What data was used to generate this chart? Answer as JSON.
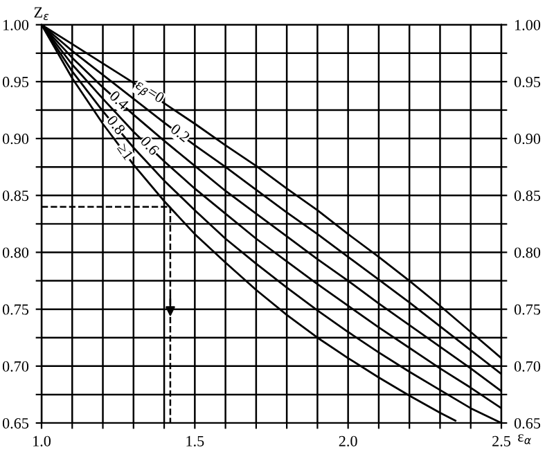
{
  "chart_data": {
    "type": "line",
    "xlabel": "ε$_{α}$",
    "ylabel": "Z$_{ε}$",
    "grid": true,
    "marker": "none",
    "line_style": "solid",
    "xlim": [
      1.0,
      2.5
    ],
    "ylim": [
      0.65,
      1.0
    ],
    "y2lim": [
      0.65,
      1.0
    ],
    "xticks": [
      {
        "value": 1.0,
        "label": "1.0"
      },
      {
        "value": 1.1,
        "label": null
      },
      {
        "value": 1.2,
        "label": null
      },
      {
        "value": 1.3,
        "label": null
      },
      {
        "value": 1.4,
        "label": null
      },
      1.5,
      {
        "value": 1.6,
        "label": null
      },
      {
        "value": 1.7,
        "label": null
      },
      {
        "value": 1.8,
        "label": null
      },
      {
        "value": 1.9,
        "label": null
      },
      {
        "value": 2.0,
        "label": "2.0"
      },
      {
        "value": 2.1,
        "label": null
      },
      {
        "value": 2.2,
        "label": null
      },
      {
        "value": 2.3,
        "label": null
      },
      {
        "value": 2.4,
        "label": null
      },
      2.5
    ],
    "yticks": [
      0.65,
      {
        "value": 0.675,
        "label": null
      },
      {
        "value": 0.7,
        "label": "0.70"
      },
      {
        "value": 0.725,
        "label": null
      },
      0.75,
      {
        "value": 0.775,
        "label": null
      },
      {
        "value": 0.8,
        "label": "0.80"
      },
      {
        "value": 0.825,
        "label": null
      },
      0.85,
      {
        "value": 0.875,
        "label": null
      },
      {
        "value": 0.9,
        "label": "0.90"
      },
      {
        "value": 0.925,
        "label": null
      },
      0.95,
      {
        "value": 0.975,
        "label": null
      },
      {
        "value": 1.0,
        "label": "1.00"
      }
    ],
    "y2ticks": [
      0.65,
      {
        "value": 0.675,
        "label": null
      },
      {
        "value": 0.7,
        "label": "0.70"
      },
      {
        "value": 0.725,
        "label": null
      },
      0.75,
      {
        "value": 0.775,
        "label": null
      },
      {
        "value": 0.8,
        "label": "0.80"
      },
      {
        "value": 0.825,
        "label": null
      },
      0.85,
      {
        "value": 0.875,
        "label": null
      },
      {
        "value": 0.9,
        "label": "0.90"
      },
      {
        "value": 0.925,
        "label": null
      },
      0.95,
      {
        "value": 0.975,
        "label": null
      },
      {
        "value": 1.0,
        "label": "1.00"
      }
    ],
    "x": [
      1.0,
      1.1,
      1.2,
      1.3,
      1.4,
      1.5,
      1.6,
      1.7,
      1.8,
      1.9,
      2.0,
      2.1,
      2.2,
      2.3,
      2.4,
      2.5
    ],
    "series": [
      {
        "name": "ε$_{β}$=0",
        "color": "#000000",
        "values": [
          1.0,
          0.983,
          0.966,
          0.949,
          0.931,
          0.913,
          0.894,
          0.876,
          0.856,
          0.837,
          0.816,
          0.796,
          0.775,
          0.753,
          0.73,
          0.707
        ]
      },
      {
        "name": "0.2",
        "color": "#000000",
        "values": [
          1.0,
          0.977,
          0.956,
          0.935,
          0.914,
          0.894,
          0.875,
          0.855,
          0.835,
          0.816,
          0.796,
          0.776,
          0.756,
          0.735,
          0.714,
          0.693
        ]
      },
      {
        "name": "0.4",
        "color": "#000000",
        "values": [
          1.0,
          0.971,
          0.945,
          0.921,
          0.898,
          0.876,
          0.854,
          0.834,
          0.814,
          0.794,
          0.775,
          0.755,
          0.736,
          0.717,
          0.698,
          0.678
        ]
      },
      {
        "name": "0.6",
        "color": "#000000",
        "values": [
          1.0,
          0.965,
          0.935,
          0.906,
          0.88,
          0.856,
          0.834,
          0.812,
          0.792,
          0.772,
          0.753,
          0.734,
          0.716,
          0.698,
          0.681,
          0.663
        ]
      },
      {
        "name": "0.8",
        "color": "#000000",
        "values": [
          1.0,
          0.959,
          0.924,
          0.892,
          0.863,
          0.837,
          0.812,
          0.79,
          0.769,
          0.749,
          0.73,
          0.712,
          0.695,
          0.679,
          0.663,
          0.65
        ]
      },
      {
        "name": "≥1",
        "color": "#000000",
        "x": [
          1.0,
          1.1,
          1.2,
          1.3,
          1.4,
          1.5,
          1.6,
          1.7,
          1.8,
          1.9,
          2.0,
          2.1,
          2.2,
          2.3,
          2.35
        ],
        "values": [
          1.0,
          0.953,
          0.913,
          0.877,
          0.845,
          0.816,
          0.791,
          0.767,
          0.745,
          0.725,
          0.707,
          0.69,
          0.674,
          0.659,
          0.652
        ]
      }
    ]
  }
}
